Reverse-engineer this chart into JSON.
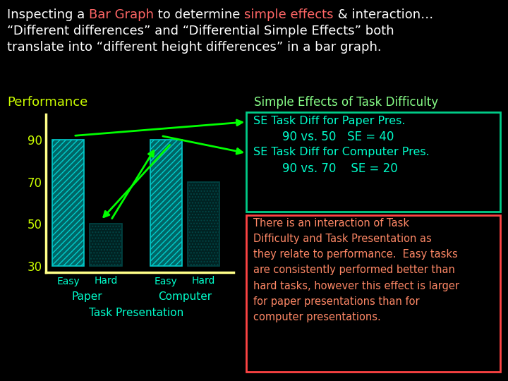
{
  "bg_color": "#000000",
  "title_seg1": [
    [
      "Inspecting a ",
      "#ffffff"
    ],
    [
      "Bar Graph",
      "#ff6666"
    ],
    [
      " to determine ",
      "#ffffff"
    ],
    [
      "simple effects",
      "#ff6666"
    ],
    [
      " & interaction…",
      "#ffffff"
    ]
  ],
  "title_line2": "“Different differences” and “Differential Simple Effects” both",
  "title_line3": "translate into “different height differences” in a bar graph.",
  "title_color": "#ffffff",
  "perf_label": "Performance",
  "perf_label_color": "#ccff00",
  "se_title": "Simple Effects of Task Difficulty",
  "se_title_color": "#88ff88",
  "bar_values": [
    90,
    50,
    90,
    70
  ],
  "yticks": [
    30,
    50,
    70,
    90
  ],
  "ytick_color": "#ccff00",
  "xlabel_color": "#00ffcc",
  "se_box1_title": "SE Task Diff for Paper Pres.",
  "se_box1_detail": "90 vs. 50   SE = 40",
  "se_box2_title": "SE Task Diff for Computer Pres.",
  "se_box2_detail": "90 vs. 70    SE = 20",
  "se_text_color": "#00ffcc",
  "se_box_border": "#00cc88",
  "interaction_text": "There is an interaction of Task\nDifficulty and Task Presentation as\nthey relate to performance.  Easy tasks\nare consistently performed better than\nhard tasks, however this effect is larger\nfor paper presentations than for\ncomputer presentations.",
  "interaction_color": "#ff8866",
  "interaction_border": "#ff4444",
  "arrow_color": "#00ff00",
  "axis_color": "#ffff88"
}
